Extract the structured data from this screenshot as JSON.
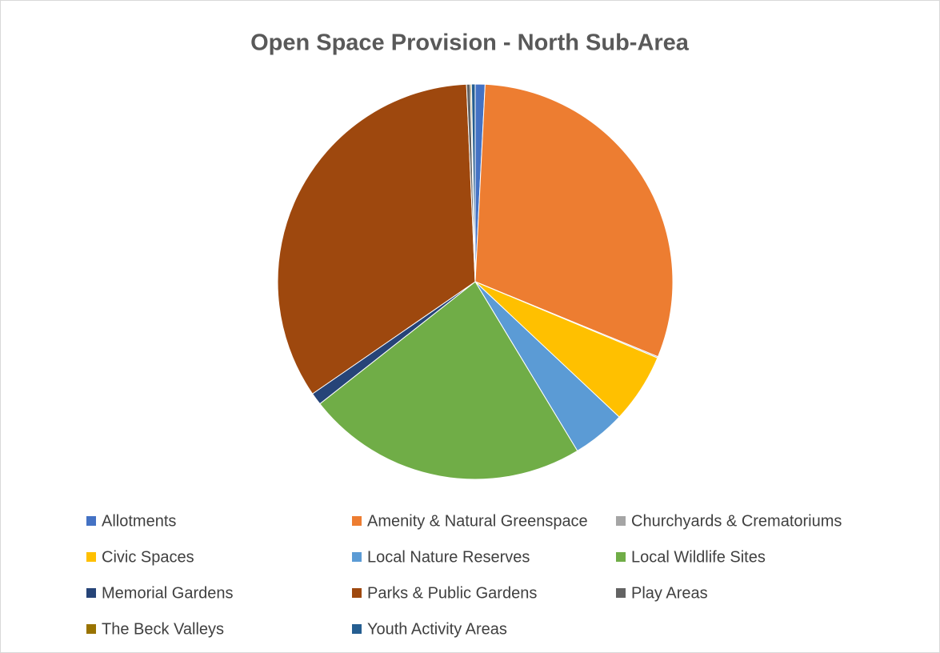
{
  "chart_data": {
    "type": "pie",
    "title": "Open Space Provision - North Sub-Area",
    "categories": [
      "Allotments",
      "Amenity & Natural Greenspace",
      "Churchyards & Crematoriums",
      "Civic Spaces",
      "Local Nature Reserves",
      "Local Wildlife Sites",
      "Memorial Gardens",
      "Parks & Public Gardens",
      "Play Areas",
      "The Beck Valleys",
      "Youth Activity Areas"
    ],
    "values": [
      0.8,
      30.4,
      0.1,
      5.7,
      4.35,
      23.05,
      1.0,
      33.9,
      0.3,
      0.1,
      0.3
    ],
    "colors": [
      "#4472c4",
      "#ed7d31",
      "#a5a5a5",
      "#ffc000",
      "#5b9bd5",
      "#70ad47",
      "#264478",
      "#9e480e",
      "#636363",
      "#997300",
      "#255e91"
    ],
    "legend": "bottom"
  }
}
